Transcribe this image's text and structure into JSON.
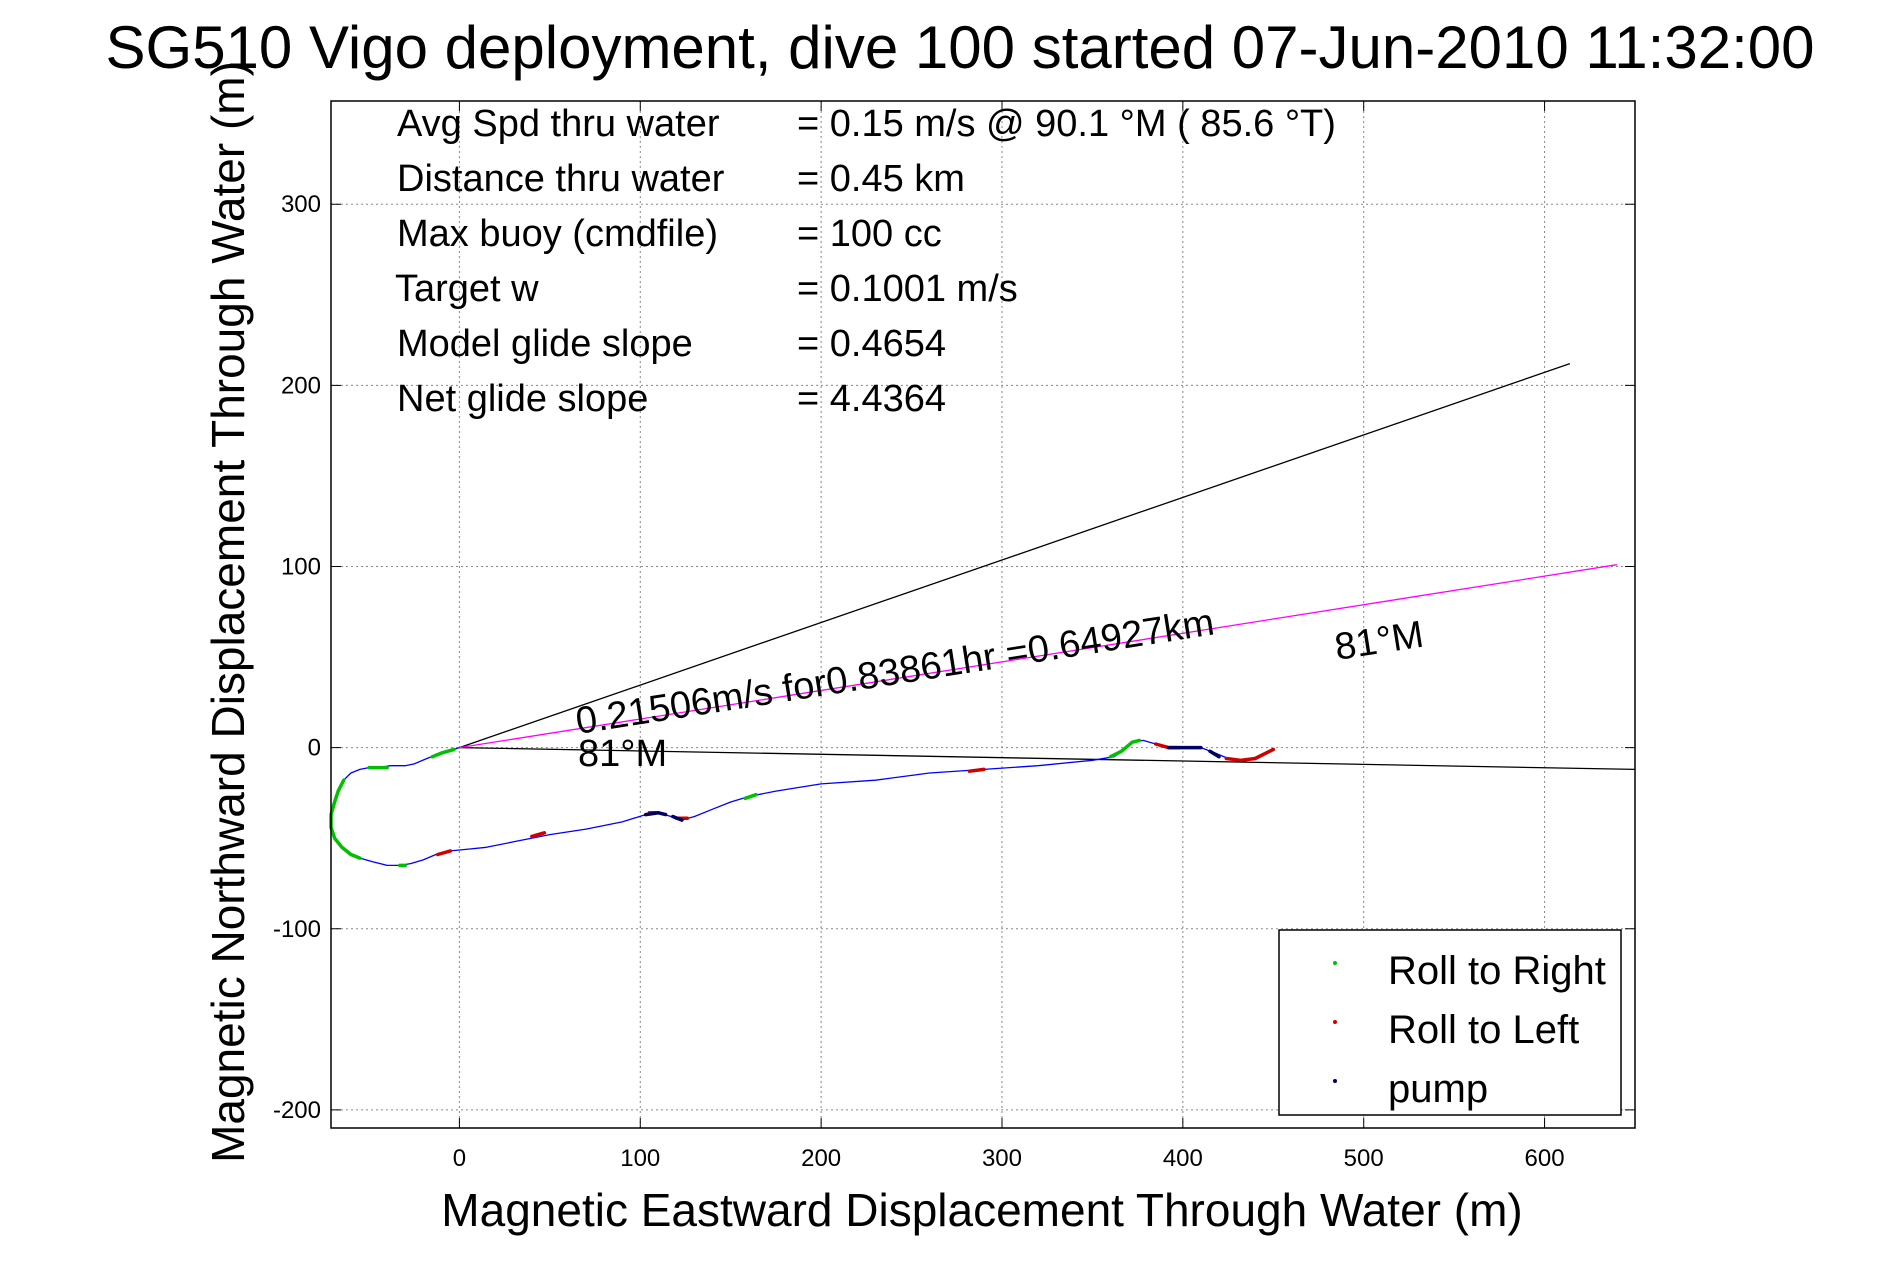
{
  "chart_data": {
    "type": "line",
    "title": "SG510 Vigo deployment, dive 100 started 07-Jun-2010 11:32:00",
    "xlabel": "Magnetic Eastward Displacement Through Water (m)",
    "ylabel": "Magnetic Northward Displacement Through Water (m)",
    "xlim": [
      -71,
      650
    ],
    "ylim": [
      -210,
      357
    ],
    "xticks": [
      0,
      100,
      200,
      300,
      400,
      500,
      600
    ],
    "yticks": [
      -200,
      -100,
      0,
      100,
      200,
      300
    ],
    "xtick_labels": [
      "0",
      "100",
      "200",
      "300",
      "400",
      "500",
      "600"
    ],
    "ytick_labels": [
      "-200",
      "-100",
      "0",
      "100",
      "200",
      "300"
    ],
    "grid": true,
    "stats": [
      {
        "label": "Avg Spd thru water",
        "value": "=  0.15 m/s @  90.1 °M ( 85.6 °T)"
      },
      {
        "label": "Distance thru water",
        "value": "=  0.45 km"
      },
      {
        "label": "Max buoy (cmdfile)",
        "value": "= 100 cc"
      },
      {
        "label": "Target w",
        "value": "= 0.1001 m/s"
      },
      {
        "label": "Model glide slope",
        "value": "= 0.4654"
      },
      {
        "label": "Net glide slope",
        "value": "= 4.4364"
      }
    ],
    "annotations": {
      "current_text": "0.21506m/s for0.83861hr =0.64927km",
      "heading_label_1": "81°M",
      "heading_label_2": "81°M"
    },
    "track": {
      "color": "#0000ff",
      "points": [
        [
          0,
          0
        ],
        [
          -10,
          -3
        ],
        [
          -18,
          -6
        ],
        [
          -25,
          -9
        ],
        [
          -30,
          -10
        ],
        [
          -38,
          -10
        ],
        [
          -45,
          -11
        ],
        [
          -50,
          -11
        ],
        [
          -55,
          -12
        ],
        [
          -60,
          -14
        ],
        [
          -64,
          -18
        ],
        [
          -67,
          -24
        ],
        [
          -69,
          -30
        ],
        [
          -71,
          -37
        ],
        [
          -71,
          -44
        ],
        [
          -69,
          -50
        ],
        [
          -65,
          -55
        ],
        [
          -60,
          -59
        ],
        [
          -55,
          -61
        ],
        [
          -48,
          -63
        ],
        [
          -40,
          -65
        ],
        [
          -33,
          -65
        ],
        [
          -27,
          -64
        ],
        [
          -20,
          -62
        ],
        [
          -13,
          -59
        ],
        [
          -5,
          -57
        ],
        [
          5,
          -56
        ],
        [
          15,
          -55
        ],
        [
          30,
          -52
        ],
        [
          50,
          -48
        ],
        [
          70,
          -45
        ],
        [
          90,
          -41
        ],
        [
          103,
          -37
        ],
        [
          110,
          -36
        ],
        [
          117,
          -38
        ],
        [
          123,
          -40
        ],
        [
          130,
          -38
        ],
        [
          140,
          -34
        ],
        [
          150,
          -30
        ],
        [
          160,
          -27
        ],
        [
          175,
          -24
        ],
        [
          200,
          -20
        ],
        [
          230,
          -18
        ],
        [
          260,
          -14
        ],
        [
          290,
          -12
        ],
        [
          320,
          -10
        ],
        [
          350,
          -7
        ],
        [
          362,
          -5
        ],
        [
          368,
          -1
        ],
        [
          372,
          3
        ],
        [
          378,
          4
        ],
        [
          385,
          2
        ],
        [
          392,
          0
        ],
        [
          400,
          0
        ],
        [
          410,
          0
        ],
        [
          418,
          -3
        ],
        [
          425,
          -6
        ],
        [
          432,
          -7
        ],
        [
          440,
          -6
        ],
        [
          446,
          -3
        ],
        [
          450,
          -1
        ]
      ]
    },
    "rollRight": {
      "color": "#00c000",
      "segments": [
        [
          [
            -50,
            -11
          ],
          [
            -45,
            -11
          ],
          [
            -40,
            -11
          ]
        ],
        [
          [
            -64,
            -18
          ],
          [
            -67,
            -24
          ],
          [
            -69,
            -30
          ],
          [
            -71,
            -37
          ],
          [
            -71,
            -44
          ],
          [
            -69,
            -50
          ],
          [
            -65,
            -55
          ],
          [
            -60,
            -59
          ],
          [
            -55,
            -61
          ]
        ],
        [
          [
            -33,
            -65
          ],
          [
            -30,
            -65
          ]
        ],
        [
          [
            -15,
            -5
          ],
          [
            -10,
            -3
          ],
          [
            -3,
            -1
          ]
        ],
        [
          [
            158,
            -28
          ],
          [
            164,
            -26
          ]
        ],
        [
          [
            360,
            -5
          ],
          [
            366,
            -2
          ],
          [
            372,
            3
          ],
          [
            376,
            4
          ]
        ]
      ]
    },
    "rollLeft": {
      "color": "#d00000",
      "segments": [
        [
          [
            -12,
            -59
          ],
          [
            -5,
            -57
          ]
        ],
        [
          [
            40,
            -49
          ],
          [
            47,
            -47
          ]
        ],
        [
          [
            105,
            -36
          ],
          [
            110,
            -36
          ]
        ],
        [
          [
            120,
            -39
          ],
          [
            126,
            -39
          ]
        ],
        [
          [
            282,
            -13
          ],
          [
            290,
            -12
          ]
        ],
        [
          [
            385,
            2
          ],
          [
            392,
            0
          ],
          [
            398,
            0
          ]
        ],
        [
          [
            424,
            -6
          ],
          [
            432,
            -7
          ],
          [
            440,
            -6
          ],
          [
            446,
            -3
          ],
          [
            450,
            -1
          ]
        ]
      ]
    },
    "pump": {
      "color": "#000060",
      "segments": [
        [
          [
            103,
            -37
          ],
          [
            110,
            -36
          ],
          [
            114,
            -37
          ]
        ],
        [
          [
            118,
            -38
          ],
          [
            123,
            -40
          ]
        ],
        [
          [
            392,
            0
          ],
          [
            400,
            0
          ],
          [
            410,
            0
          ]
        ],
        [
          [
            415,
            -2
          ],
          [
            420,
            -5
          ]
        ]
      ]
    },
    "lines": [
      {
        "name": "net",
        "color": "#000000",
        "points": [
          [
            0,
            0
          ],
          [
            614,
            212
          ]
        ]
      },
      {
        "name": "current",
        "color": "#000000",
        "points": [
          [
            0,
            0
          ],
          [
            650,
            -12
          ]
        ]
      },
      {
        "name": "heading",
        "color": "#ff00ff",
        "points": [
          [
            0,
            0
          ],
          [
            640,
            101
          ]
        ]
      }
    ],
    "legend": {
      "position": "bottom-right",
      "entries": [
        {
          "label": "Roll to Right",
          "color": "#00c000"
        },
        {
          "label": "Roll to Left",
          "color": "#d00000"
        },
        {
          "label": "pump",
          "color": "#000060"
        }
      ]
    }
  }
}
